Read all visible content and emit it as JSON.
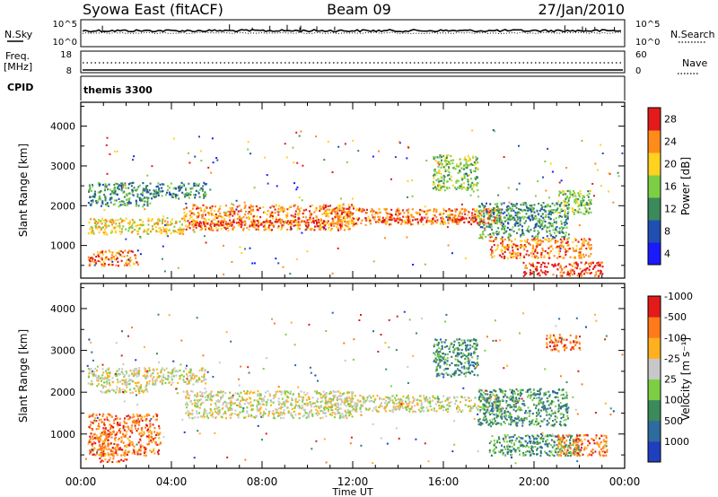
{
  "header": {
    "station": "Syowa East (fitACF)",
    "beam": "Beam 09",
    "date": "27/Jan/2010"
  },
  "aux_panels": {
    "nsky": {
      "label": "N.Sky",
      "right_label": "N.Search",
      "left_ticks": [
        "10^5",
        "10^0"
      ],
      "right_ticks": [
        "10^5",
        "10^0"
      ]
    },
    "freq": {
      "label_top": "Freq.",
      "label_bottom": "[MHz]",
      "right_label": "Nave",
      "left_ticks": [
        "18",
        "8"
      ],
      "right_ticks": [
        "60",
        "0"
      ]
    },
    "cpid": {
      "label": "CPID",
      "program": "themis 3300"
    }
  },
  "chart_data": [
    {
      "type": "heatmap",
      "title": "",
      "xlabel": "",
      "ylabel": "Slant Range [km]",
      "x_ticks": [
        "00:00",
        "04:00",
        "08:00",
        "12:00",
        "16:00",
        "20:00",
        "00:00"
      ],
      "x_range_hours": [
        0,
        24
      ],
      "y_ticks": [
        1000,
        2000,
        3000,
        4000
      ],
      "ylim": [
        180,
        4600
      ],
      "colorbar": {
        "label": "Power [dB]",
        "ticks": [
          "4",
          "8",
          "12",
          "16",
          "20",
          "24",
          "28"
        ],
        "colors": [
          "#1a1aff",
          "#1f4fb0",
          "#3a8a5c",
          "#7ccf44",
          "#ffd21f",
          "#ff8c1a",
          "#e21a1a"
        ]
      },
      "echo_regions": [
        {
          "t": [
            0.3,
            3.0
          ],
          "r": [
            2000,
            2600
          ],
          "level": 2
        },
        {
          "t": [
            0.3,
            4.5
          ],
          "r": [
            1300,
            1700
          ],
          "level": 4
        },
        {
          "t": [
            0.3,
            2.5
          ],
          "r": [
            500,
            900
          ],
          "level": 5
        },
        {
          "t": [
            3.0,
            5.5
          ],
          "r": [
            2200,
            2600
          ],
          "level": 2
        },
        {
          "t": [
            4.5,
            12.0
          ],
          "r": [
            1400,
            2050
          ],
          "level": 5
        },
        {
          "t": [
            5.0,
            11.0
          ],
          "r": [
            1500,
            1650
          ],
          "level": 6
        },
        {
          "t": [
            11.0,
            18.5
          ],
          "r": [
            1550,
            1950
          ],
          "level": 5
        },
        {
          "t": [
            12.5,
            17.8
          ],
          "r": [
            1600,
            1750
          ],
          "level": 6
        },
        {
          "t": [
            15.5,
            17.5
          ],
          "r": [
            2400,
            3300
          ],
          "level": 3
        },
        {
          "t": [
            17.5,
            21.5
          ],
          "r": [
            1200,
            2100
          ],
          "level": 2
        },
        {
          "t": [
            18.0,
            22.5
          ],
          "r": [
            700,
            1200
          ],
          "level": 5
        },
        {
          "t": [
            19.5,
            23.0
          ],
          "r": [
            250,
            600
          ],
          "level": 6
        },
        {
          "t": [
            21.0,
            22.5
          ],
          "r": [
            1800,
            2400
          ],
          "level": 3
        }
      ]
    },
    {
      "type": "heatmap",
      "title": "",
      "xlabel": "Time UT",
      "ylabel": "Slant Range [km]",
      "x_ticks": [
        "00:00",
        "04:00",
        "08:00",
        "12:00",
        "16:00",
        "20:00",
        "00:00"
      ],
      "x_range_hours": [
        0,
        24
      ],
      "y_ticks": [
        1000,
        2000,
        3000,
        4000
      ],
      "ylim": [
        180,
        4600
      ],
      "colorbar": {
        "label": "Velocity [m s⁻¹]",
        "ticks": [
          "1000",
          "500",
          "100",
          "25",
          "-25",
          "-100",
          "-500",
          "-1000"
        ],
        "colors": [
          "#1f3fbf",
          "#2e6b9e",
          "#3a8a5c",
          "#7ccf44",
          "#c8c8c8",
          "#ffb01f",
          "#ff7a1a",
          "#e21a1a"
        ]
      },
      "echo_regions": [
        {
          "t": [
            0.3,
            3.0
          ],
          "r": [
            2000,
            2600
          ],
          "level": 4
        },
        {
          "t": [
            0.3,
            3.5
          ],
          "r": [
            500,
            1500
          ],
          "level": 6
        },
        {
          "t": [
            0.8,
            2.0
          ],
          "r": [
            350,
            700
          ],
          "level": 6
        },
        {
          "t": [
            3.0,
            5.5
          ],
          "r": [
            2200,
            2600
          ],
          "level": 4
        },
        {
          "t": [
            4.5,
            12.0
          ],
          "r": [
            1400,
            2050
          ],
          "level": 4
        },
        {
          "t": [
            11.0,
            18.5
          ],
          "r": [
            1550,
            1950
          ],
          "level": 4
        },
        {
          "t": [
            15.5,
            17.5
          ],
          "r": [
            2400,
            3300
          ],
          "level": 2
        },
        {
          "t": [
            17.5,
            21.5
          ],
          "r": [
            1200,
            2100
          ],
          "level": 2
        },
        {
          "t": [
            18.0,
            22.0
          ],
          "r": [
            500,
            1000
          ],
          "level": 2
        },
        {
          "t": [
            21.0,
            23.2
          ],
          "r": [
            500,
            1000
          ],
          "level": 6
        },
        {
          "t": [
            20.5,
            22.0
          ],
          "r": [
            3000,
            3400
          ],
          "level": 6
        }
      ]
    }
  ]
}
